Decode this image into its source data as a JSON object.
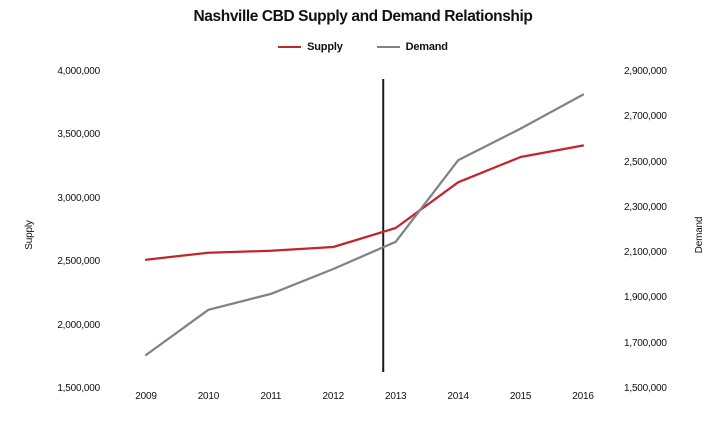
{
  "title": "Nashville CBD Supply and Demand Relationship",
  "legend": [
    {
      "label": "Supply",
      "color": "#c0272d"
    },
    {
      "label": "Demand",
      "color": "#808285"
    }
  ],
  "chart_data": {
    "type": "line",
    "title": "Nashville CBD Supply and Demand Relationship",
    "x": [
      2009,
      2010,
      2011,
      2012,
      2013,
      2014,
      2015,
      2016
    ],
    "series": [
      {
        "name": "Supply",
        "axis": "left",
        "color": "#c0272d",
        "values": [
          2520000,
          2575000,
          2590000,
          2620000,
          2770000,
          3130000,
          3330000,
          3420000
        ]
      },
      {
        "name": "Demand",
        "axis": "right",
        "color": "#808285",
        "values": [
          1650000,
          1850000,
          1920000,
          2030000,
          2150000,
          2510000,
          2650000,
          2800000
        ]
      }
    ],
    "left_axis": {
      "label": "Supply",
      "min": 1500000,
      "max": 4000000,
      "tick_labels": [
        "4,000,000",
        "3,500,000",
        "3,000,000",
        "2,500,000",
        "2,000,000",
        "1,500,000"
      ]
    },
    "right_axis": {
      "label": "Demand",
      "min": 1500000,
      "max": 2900000,
      "tick_labels": [
        "2,900,000",
        "2,700,000",
        "2,500,000",
        "2,300,000",
        "2,100,000",
        "1,900,000",
        "1,700,000",
        "1,500,000"
      ]
    },
    "x_axis": {
      "labels": [
        "2009",
        "2010",
        "2011",
        "2012",
        "2013",
        "2014",
        "2015",
        "2016"
      ]
    },
    "vertical_line": {
      "x": 2012.8,
      "color": "#1a1a1a"
    },
    "grid": false,
    "legend_position": "top-center"
  }
}
